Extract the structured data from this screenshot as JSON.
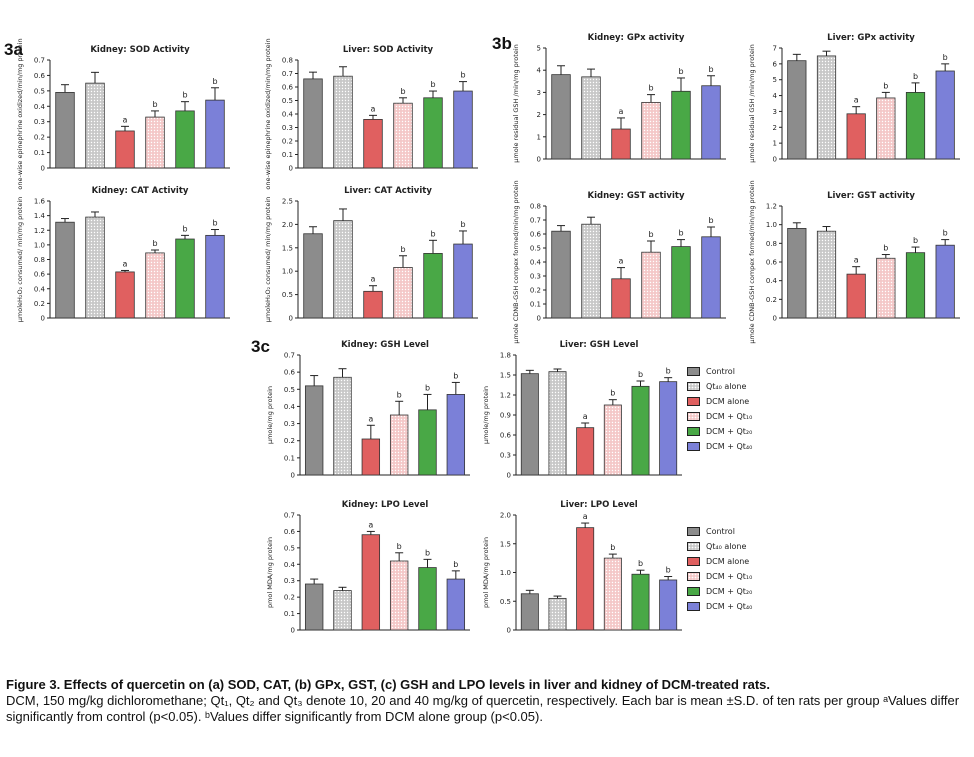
{
  "panel_labels": [
    "3a",
    "3b",
    "3c"
  ],
  "colors": {
    "control": "#8c8c8c",
    "qt_alone": "#c8c8c8",
    "dcm_alone": "#e06060",
    "dcm_qt1": "#f4c8c8",
    "dcm_qt2": "#49a846",
    "dcm_qt3": "#7b80d8"
  },
  "legend_top": {
    "items": [
      {
        "label": "Control",
        "color": "#8c8c8c"
      },
      {
        "label": "Qt₄₀ alone",
        "color": "#c8c8c8"
      },
      {
        "label": "DCM alone",
        "color": "#e06060"
      },
      {
        "label": "DCM + Qt₁₀",
        "color": "#f4c8c8"
      },
      {
        "label": "DCM + Qt₂₀",
        "color": "#49a846"
      },
      {
        "label": "DCM + Qt₄₀",
        "color": "#7b80d8"
      }
    ]
  },
  "legend_bottom": {
    "items": [
      {
        "label": "Control",
        "color": "#8c8c8c"
      },
      {
        "label": "Qt₄₀ alone",
        "color": "#c8c8c8"
      },
      {
        "label": "DCM alone",
        "color": "#e06060"
      },
      {
        "label": "DCM + Qt₁₀",
        "color": "#f4c8c8"
      },
      {
        "label": "DCM + Qt₂₀",
        "color": "#49a846"
      },
      {
        "label": "DCM + Qt₄₀",
        "color": "#7b80d8"
      }
    ]
  },
  "caption": {
    "title": "Figure 3. Effects of quercetin on (a) SOD, CAT, (b) GPx, GST, (c) GSH and LPO levels in liver and kidney of DCM-treated rats.",
    "body": "DCM, 150 mg/kg dichloromethane; Qt₁, Qt₂ and Qt₃ denote 10, 20 and 40 mg/kg of quercetin, respectively. Each bar is mean ±S.D. of ten rats per group ᵃValues differ significantly from control (p<0.05). ᵇValues differ significantly from DCM alone group (p<0.05)."
  },
  "chart_data": [
    {
      "type": "bar",
      "title": "Kidney: SOD Activity",
      "ylabel": "one-wise epinephrine oxidized/min/mg protein",
      "ylim": [
        0,
        0.7
      ],
      "yticks": [
        "0",
        "0.1",
        "0.2",
        "0.3",
        "0.4",
        "0.5",
        "0.6",
        "0.7"
      ],
      "values": [
        0.49,
        0.55,
        0.24,
        0.33,
        0.37,
        0.44
      ],
      "errors": [
        0.05,
        0.07,
        0.03,
        0.04,
        0.06,
        0.08
      ],
      "annotations": [
        "",
        "",
        "a",
        "b",
        "b",
        "b"
      ]
    },
    {
      "type": "bar",
      "title": "Liver: SOD Activity",
      "ylabel": "one-wise epinephrine oxidized/min/mg protein",
      "ylim": [
        0,
        0.8
      ],
      "yticks": [
        "0",
        "0.1",
        "0.2",
        "0.3",
        "0.4",
        "0.5",
        "0.6",
        "0.7",
        "0.8"
      ],
      "values": [
        0.66,
        0.68,
        0.36,
        0.48,
        0.52,
        0.57
      ],
      "errors": [
        0.05,
        0.07,
        0.03,
        0.04,
        0.05,
        0.07
      ],
      "annotations": [
        "",
        "",
        "a",
        "b",
        "b",
        "b"
      ]
    },
    {
      "type": "bar",
      "title": "Kidney: GPx activity",
      "ylabel": "µmole residual GSH /min/mg protein",
      "ylim": [
        0,
        5
      ],
      "yticks": [
        "0",
        "1",
        "2",
        "3",
        "4",
        "5"
      ],
      "values": [
        3.8,
        3.7,
        1.35,
        2.55,
        3.05,
        3.3
      ],
      "errors": [
        0.4,
        0.35,
        0.5,
        0.35,
        0.6,
        0.45
      ],
      "annotations": [
        "",
        "",
        "a",
        "b",
        "b",
        "b"
      ]
    },
    {
      "type": "bar",
      "title": "Liver: GPx activity",
      "ylabel": "µmole residual GSH /min/mg protein",
      "ylim": [
        0,
        7
      ],
      "yticks": [
        "0",
        "1",
        "2",
        "3",
        "4",
        "5",
        "6",
        "7"
      ],
      "values": [
        6.2,
        6.5,
        2.85,
        3.85,
        4.2,
        5.55
      ],
      "errors": [
        0.4,
        0.3,
        0.45,
        0.35,
        0.6,
        0.45
      ],
      "annotations": [
        "",
        "",
        "a",
        "b",
        "b",
        "b"
      ]
    },
    {
      "type": "bar",
      "title": "Kidney: CAT Activity",
      "ylabel": "µmoleH₂O₂ consumed/ min/mg protein",
      "ylim": [
        0,
        1.6
      ],
      "yticks": [
        "0",
        "0.2",
        "0.4",
        "0.6",
        "0.8",
        "1.0",
        "1.2",
        "1.4",
        "1.6"
      ],
      "values": [
        1.31,
        1.38,
        0.63,
        0.89,
        1.08,
        1.13
      ],
      "errors": [
        0.05,
        0.07,
        0.02,
        0.04,
        0.05,
        0.08
      ],
      "annotations": [
        "",
        "",
        "a",
        "b",
        "b",
        "b"
      ]
    },
    {
      "type": "bar",
      "title": "Liver: CAT Activity",
      "ylabel": "µmoleH₂O₂ consumed/ min/mg protein",
      "ylim": [
        0,
        2.5
      ],
      "yticks": [
        "0",
        "0.5",
        "1.0",
        "1.5",
        "2.0",
        "2.5"
      ],
      "values": [
        1.8,
        2.08,
        0.57,
        1.08,
        1.38,
        1.58
      ],
      "errors": [
        0.15,
        0.25,
        0.12,
        0.25,
        0.28,
        0.28
      ],
      "annotations": [
        "",
        "",
        "a",
        "b",
        "b",
        "b"
      ]
    },
    {
      "type": "bar",
      "title": "Kidney: GST activity",
      "ylabel": "µmole CDNB-GSH compex formed/min/mg protein",
      "ylim": [
        0,
        0.8
      ],
      "yticks": [
        "0",
        "0.1",
        "0.2",
        "0.3",
        "0.4",
        "0.5",
        "0.6",
        "0.7",
        "0.8"
      ],
      "values": [
        0.62,
        0.67,
        0.28,
        0.47,
        0.51,
        0.58
      ],
      "errors": [
        0.04,
        0.05,
        0.08,
        0.08,
        0.05,
        0.07
      ],
      "annotations": [
        "",
        "",
        "a",
        "b",
        "b",
        "b"
      ]
    },
    {
      "type": "bar",
      "title": "Liver: GST activity",
      "ylabel": "µmole CDNB-GSH compex formed/min/mg protein",
      "ylim": [
        0,
        1.2
      ],
      "yticks": [
        "0",
        "0.2",
        "0.4",
        "0.6",
        "0.8",
        "1.0",
        "1.2"
      ],
      "values": [
        0.96,
        0.93,
        0.47,
        0.64,
        0.7,
        0.78
      ],
      "errors": [
        0.06,
        0.05,
        0.08,
        0.04,
        0.06,
        0.06
      ],
      "annotations": [
        "",
        "",
        "a",
        "b",
        "b",
        "b"
      ]
    },
    {
      "type": "bar",
      "title": "Kidney: GSH Level",
      "ylabel": "µmole/mg protein",
      "ylim": [
        0,
        0.7
      ],
      "yticks": [
        "0",
        "0.1",
        "0.2",
        "0.3",
        "0.4",
        "0.5",
        "0.6",
        "0.7"
      ],
      "values": [
        0.52,
        0.57,
        0.21,
        0.35,
        0.38,
        0.47
      ],
      "errors": [
        0.06,
        0.05,
        0.08,
        0.08,
        0.09,
        0.07
      ],
      "annotations": [
        "",
        "",
        "a",
        "b",
        "b",
        "b"
      ]
    },
    {
      "type": "bar",
      "title": "Liver: GSH Level",
      "ylabel": "µmole/mg protein",
      "ylim": [
        0,
        1.8
      ],
      "yticks": [
        "0",
        "0.3",
        "0.6",
        "0.9",
        "1.2",
        "1.5",
        "1.8"
      ],
      "values": [
        1.52,
        1.55,
        0.71,
        1.05,
        1.33,
        1.4
      ],
      "errors": [
        0.05,
        0.04,
        0.07,
        0.08,
        0.08,
        0.06
      ],
      "annotations": [
        "",
        "",
        "a",
        "b",
        "b",
        "b"
      ]
    },
    {
      "type": "bar",
      "title": "Kidney: LPO Level",
      "ylabel": "pmol MDA/mg protein",
      "ylim": [
        0,
        0.7
      ],
      "yticks": [
        "0",
        "0.1",
        "0.2",
        "0.3",
        "0.4",
        "0.5",
        "0.6",
        "0.7"
      ],
      "values": [
        0.28,
        0.24,
        0.58,
        0.42,
        0.38,
        0.31
      ],
      "errors": [
        0.03,
        0.02,
        0.02,
        0.05,
        0.05,
        0.05
      ],
      "annotations": [
        "",
        "",
        "a",
        "b",
        "b",
        "b"
      ]
    },
    {
      "type": "bar",
      "title": "Liver: LPO Level",
      "ylabel": "pmol MDA/mg protein",
      "ylim": [
        0,
        2.0
      ],
      "yticks": [
        "0",
        "0.5",
        "1.0",
        "1.5",
        "2.0"
      ],
      "values": [
        0.63,
        0.55,
        1.78,
        1.25,
        0.97,
        0.87
      ],
      "errors": [
        0.06,
        0.04,
        0.08,
        0.07,
        0.07,
        0.06
      ],
      "annotations": [
        "",
        "",
        "a",
        "b",
        "b",
        "b"
      ]
    }
  ]
}
